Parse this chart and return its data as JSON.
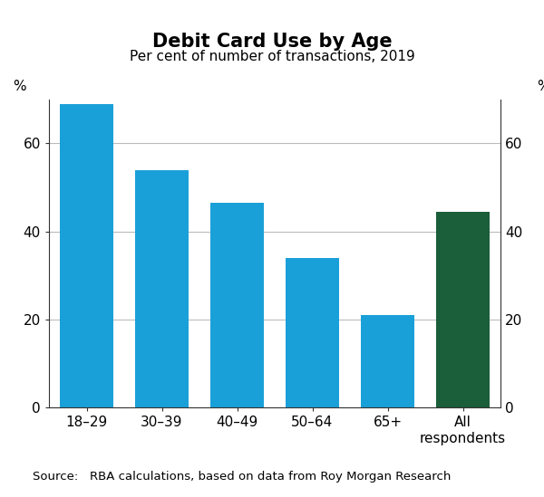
{
  "title": "Debit Card Use by Age",
  "subtitle": "Per cent of number of transactions, 2019",
  "source_text": "Source:   RBA calculations, based on data from Roy Morgan Research",
  "categories": [
    "18–29",
    "30–39",
    "40–49",
    "50–64",
    "65+",
    "All\nrespondents"
  ],
  "values": [
    69,
    54,
    46.5,
    34,
    21,
    44.5
  ],
  "bar_colors": [
    "#1aa0d8",
    "#1aa0d8",
    "#1aa0d8",
    "#1aa0d8",
    "#1aa0d8",
    "#1a5e3a"
  ],
  "ylim": [
    0,
    70
  ],
  "yticks": [
    0,
    20,
    40,
    60
  ],
  "ylabel": "%",
  "background_color": "#ffffff",
  "title_fontsize": 15,
  "subtitle_fontsize": 11,
  "tick_fontsize": 11,
  "source_fontsize": 9.5,
  "bar_width": 0.72
}
